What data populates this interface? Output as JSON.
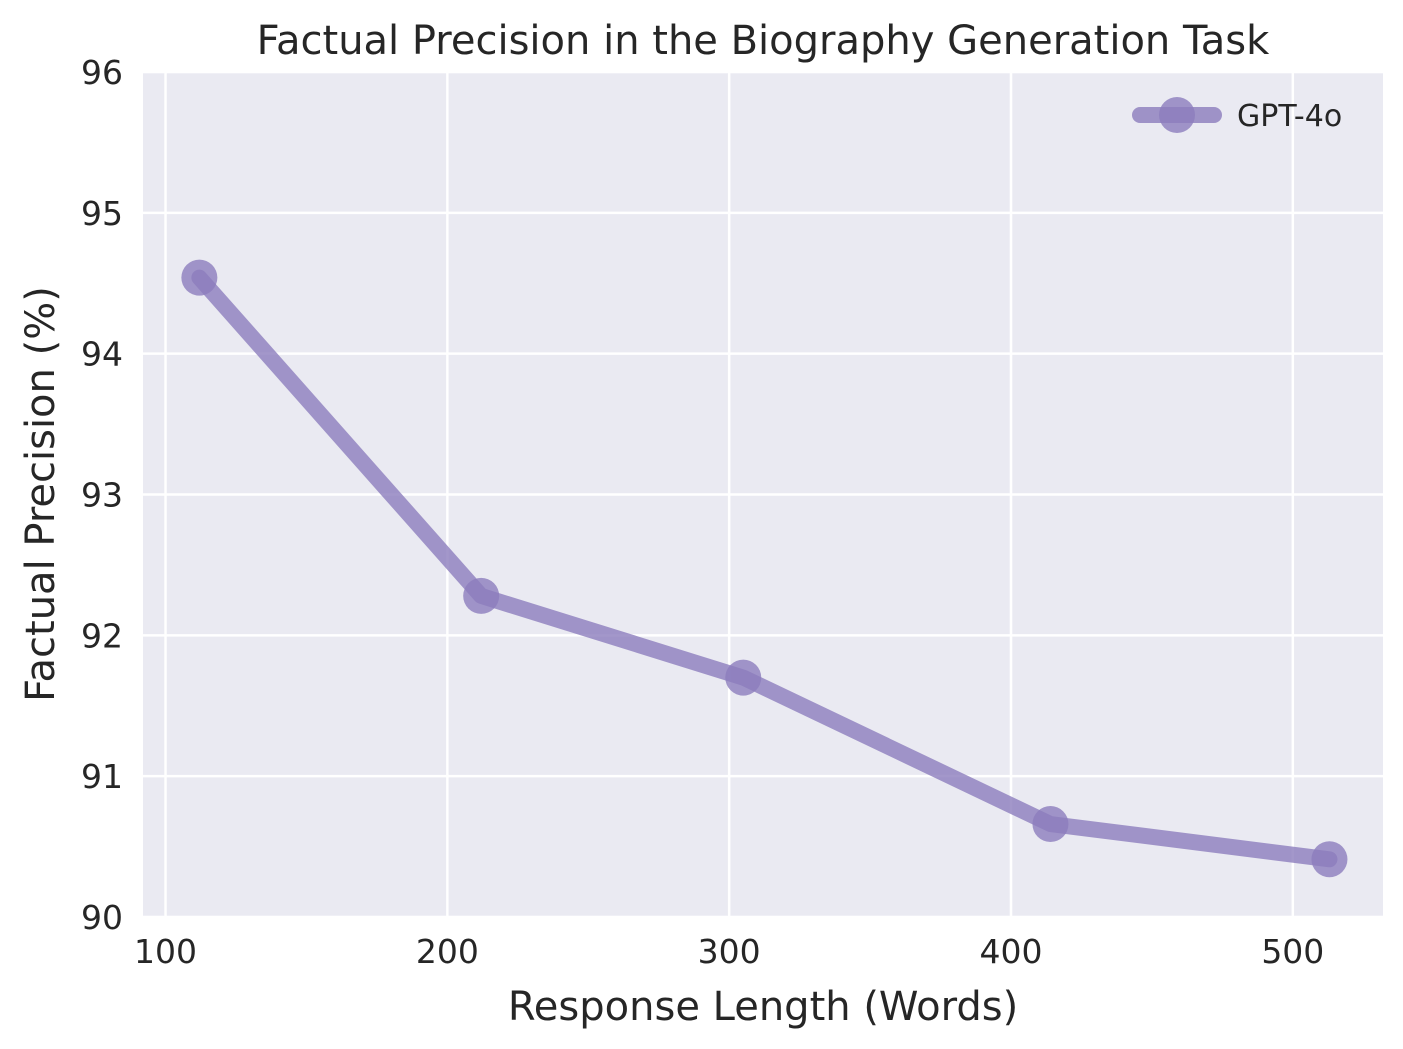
{
  "chart_data": {
    "type": "line",
    "title": "Factual Precision in the Biography Generation Task",
    "xlabel": "Response Length (Words)",
    "ylabel": "Factual Precision (%)",
    "xlim": [
      92,
      532
    ],
    "ylim": [
      90,
      96
    ],
    "xticks": [
      100,
      200,
      300,
      400,
      500
    ],
    "yticks": [
      90,
      91,
      92,
      93,
      94,
      95,
      96
    ],
    "grid": true,
    "legend_position": "top-right",
    "series": [
      {
        "name": "GPT-4o",
        "color": "#8c7dbd",
        "x": [
          112,
          212,
          305,
          414,
          513
        ],
        "y": [
          94.54,
          92.28,
          91.7,
          90.66,
          90.41
        ]
      }
    ]
  },
  "colors": {
    "plot_background": "#eaeaf2",
    "grid": "#ffffff",
    "text": "#262626"
  }
}
